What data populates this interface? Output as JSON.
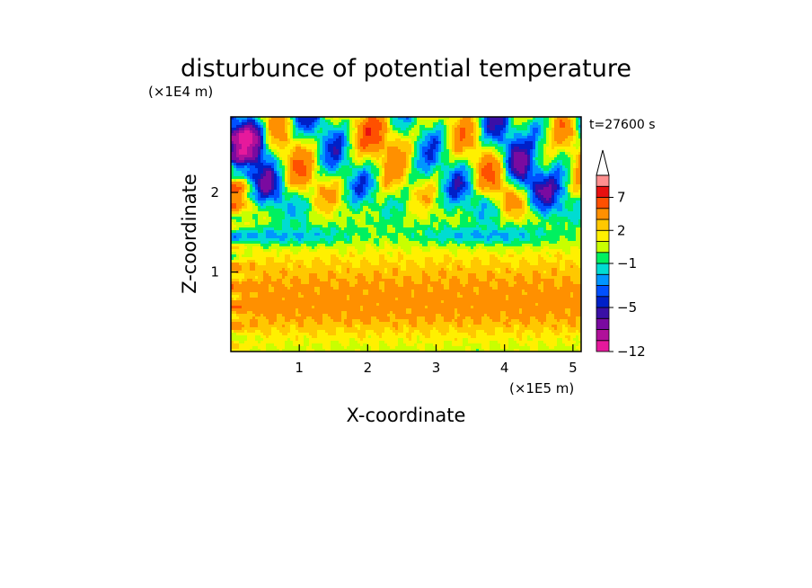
{
  "chart_data": {
    "type": "heatmap",
    "title": "disturbunce of potential temperature",
    "xlabel": "X-coordinate",
    "ylabel": "Z-coordinate",
    "x_unit": "(×1E5 m)",
    "y_unit": "(×1E4 m)",
    "time_label": "t=27600 s",
    "xlim": [
      0,
      5.12
    ],
    "ylim": [
      0,
      2.95
    ],
    "x_ticks": [
      "1",
      "2",
      "3",
      "4",
      "5"
    ],
    "y_ticks": [
      "1",
      "2"
    ],
    "colorbar": {
      "labels": [
        "7",
        "2",
        "−1",
        "−5",
        "−12"
      ],
      "label_values": [
        7,
        2,
        -1,
        -5,
        -12
      ],
      "levels": [
        -12,
        -10,
        -8,
        -6,
        -5,
        -4,
        -3,
        -2,
        -1,
        0,
        1,
        2,
        3,
        5,
        7,
        9,
        11
      ],
      "colors": [
        "#e6199c",
        "#b0109a",
        "#7a0aa0",
        "#3a0fa6",
        "#0020c8",
        "#0050ff",
        "#0096ff",
        "#00dcd2",
        "#00f060",
        "#c8ff00",
        "#fff000",
        "#ffc800",
        "#ff9000",
        "#ff5000",
        "#e81010",
        "#ff9090",
        "#ffc8c8"
      ]
    },
    "grid": false,
    "legend": "right"
  }
}
